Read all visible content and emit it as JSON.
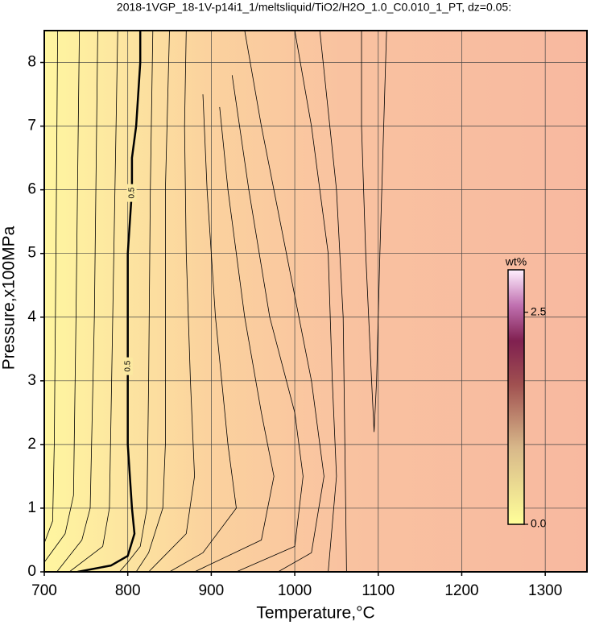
{
  "chart_data": {
    "type": "contour",
    "title": "2018-1VGP_18-1V-p14i1_1/meltsliquid/TiO2/H2O_1.0_C0.010_1_PT, dz=0.05:",
    "x_label": "Temperature,°C",
    "y_label": "Pressure,x100MPa",
    "xlim": [
      700,
      1350
    ],
    "ylim": [
      0,
      8.5
    ],
    "xticks": [
      700,
      800,
      900,
      1000,
      1100,
      1200,
      1300
    ],
    "yticks": [
      0,
      1,
      2,
      3,
      4,
      5,
      6,
      7,
      8
    ],
    "grid": true,
    "contours": [
      {
        "x": [
          700,
          710,
          712,
          714,
          716
        ],
        "y": [
          0.45,
          0.8,
          2,
          5,
          8.5
        ]
      },
      {
        "x": [
          700,
          725,
          735,
          738,
          742
        ],
        "y": [
          0.15,
          0.6,
          1.2,
          4,
          8.5
        ]
      },
      {
        "x": [
          715,
          745,
          755,
          760,
          764
        ],
        "y": [
          0,
          0.5,
          1,
          4,
          8.5
        ]
      },
      {
        "x": [
          730,
          770,
          778,
          782,
          788
        ],
        "y": [
          0,
          0.4,
          1,
          4,
          8.5
        ]
      },
      {
        "x": [
          740,
          780,
          800,
          808,
          805,
          800,
          800,
          800,
          800,
          805,
          805,
          810,
          815,
          815
        ],
        "y": [
          0,
          0.1,
          0.25,
          0.6,
          1,
          2,
          3,
          4,
          5,
          6,
          6.5,
          7,
          8,
          8.5
        ],
        "labels": [
          "0.5",
          "0.5"
        ]
      },
      {
        "x": [
          790,
          800,
          815,
          823,
          825,
          827,
          830
        ],
        "y": [
          0,
          0.15,
          0.4,
          1,
          3,
          6,
          8.5
        ]
      },
      {
        "x": [
          810,
          825,
          842,
          845,
          845,
          845,
          850
        ],
        "y": [
          0,
          0.3,
          1,
          2,
          4,
          6,
          8.5
        ]
      },
      {
        "x": [
          825,
          840,
          870,
          880,
          875,
          870,
          868,
          870
        ],
        "y": [
          0,
          0.2,
          0.6,
          1.5,
          3,
          5,
          7,
          8.5
        ]
      },
      {
        "x": [
          850,
          890,
          930,
          920,
          905,
          895,
          890
        ],
        "y": [
          0,
          0.3,
          1,
          2,
          4,
          6,
          7.5
        ]
      },
      {
        "x": [
          880,
          960,
          975,
          960,
          940,
          920,
          910
        ],
        "y": [
          0,
          0.5,
          1.5,
          2.5,
          4,
          6,
          7.3
        ]
      },
      {
        "x": [
          930,
          1000,
          1010,
          1000,
          970,
          945,
          925
        ],
        "y": [
          0,
          0.4,
          1.5,
          2.5,
          4,
          6,
          7.8
        ]
      },
      {
        "x": [
          980,
          1020,
          1035,
          1020,
          990,
          960,
          940
        ],
        "y": [
          0,
          0.3,
          1.5,
          3,
          5,
          7,
          8.5
        ]
      },
      {
        "x": [
          1040,
          1050,
          1045,
          1040,
          1020,
          1000
        ],
        "y": [
          0,
          1.5,
          3,
          5,
          7,
          8.5
        ]
      },
      {
        "x": [
          1062,
          1060,
          1058,
          1050,
          1030
        ],
        "y": [
          0,
          2,
          4,
          6,
          8.5
        ]
      },
      {
        "x": [
          1080,
          1080,
          1085,
          1092,
          1095,
          1098,
          1102,
          1110
        ],
        "y": [
          8.5,
          7,
          5,
          3,
          2.2,
          3,
          5,
          8.5
        ]
      }
    ],
    "colorbar": {
      "label": "wt%",
      "lim": [
        0,
        3.0
      ],
      "ticks": [
        {
          "value": 0,
          "label": "0.0"
        },
        2.5
      ]
    }
  }
}
